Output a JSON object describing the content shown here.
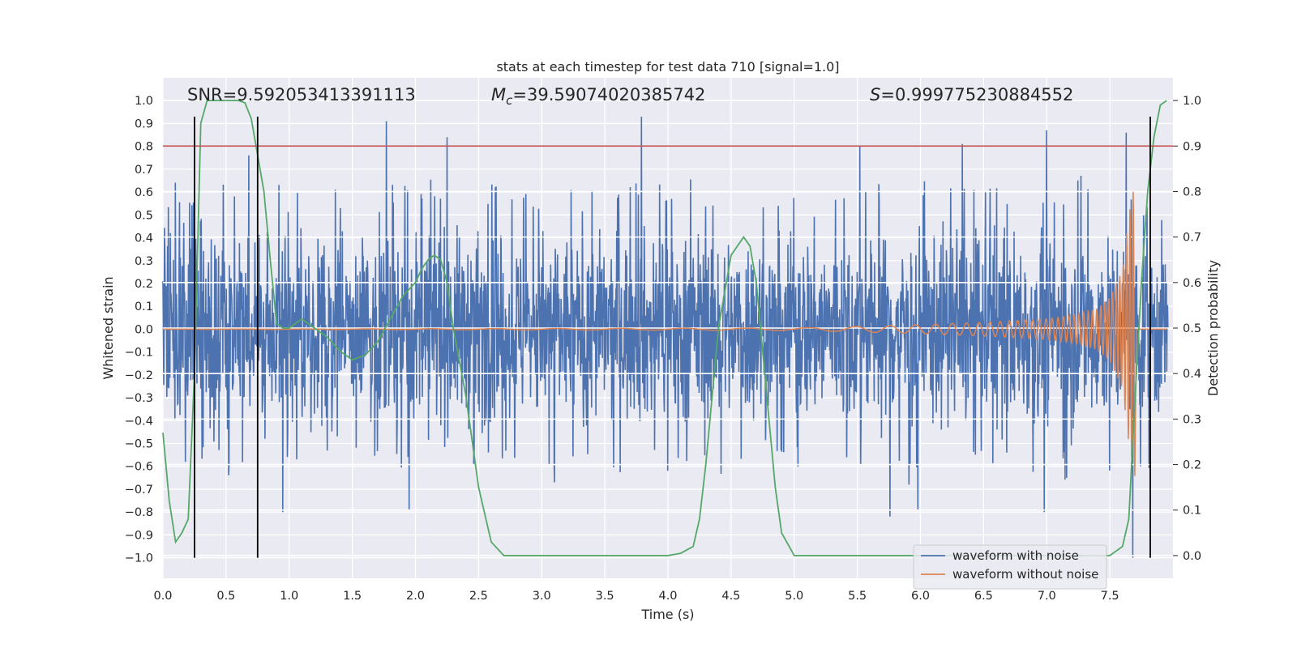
{
  "chart_data": {
    "type": "line",
    "title": "stats at each timestep for test data 710 [signal=1.0]",
    "xlabel": "Time (s)",
    "ylabel": "Whitened strain",
    "ylabel_right": "Detection probability",
    "xlim": [
      0.0,
      8.0
    ],
    "ylim": [
      -1.09,
      1.1
    ],
    "ylim_right": [
      -0.05,
      1.05
    ],
    "x_ticks": [
      "0.0",
      "0.5",
      "1.0",
      "1.5",
      "2.0",
      "2.5",
      "3.0",
      "3.5",
      "4.0",
      "4.5",
      "5.0",
      "5.5",
      "6.0",
      "6.5",
      "7.0",
      "7.5"
    ],
    "y_ticks": [
      "1.0",
      "0.9",
      "0.8",
      "0.7",
      "0.6",
      "0.5",
      "0.4",
      "0.3",
      "0.2",
      "0.1",
      "0.0",
      "−0.1",
      "−0.2",
      "−0.3",
      "−0.4",
      "−0.5",
      "−0.6",
      "−0.7",
      "−0.8",
      "−0.9",
      "−1.0"
    ],
    "y_right_ticks": [
      "1.0",
      "0.9",
      "0.8",
      "0.7",
      "0.6",
      "0.5",
      "0.4",
      "0.3",
      "0.2",
      "0.1",
      "0.0"
    ],
    "annotations": {
      "snr": "SNR=9.592053413391113",
      "mc_symbol": "M",
      "mc_sub": "c",
      "mc_value": "=39.59074020385742",
      "s_symbol": "S",
      "s_value": "=0.999775230884552"
    },
    "threshold_right": 0.9,
    "event_lines_x": [
      0.25,
      0.75,
      7.82
    ],
    "event_lines_yrange": [
      -1.0,
      0.93
    ],
    "noise_envelope": {
      "x": [
        0.0,
        0.5,
        1.0,
        1.5,
        2.0,
        2.5,
        3.0,
        3.5,
        4.0,
        4.5,
        5.0,
        5.5,
        6.0,
        6.5,
        7.0,
        7.5,
        8.0
      ],
      "upper": [
        0.62,
        0.66,
        0.6,
        0.62,
        0.65,
        0.6,
        0.62,
        0.62,
        0.64,
        0.6,
        0.64,
        0.62,
        0.62,
        0.64,
        0.62,
        0.66,
        0.6
      ],
      "lower": [
        -0.6,
        -0.62,
        -0.64,
        -0.6,
        -0.62,
        -0.62,
        -0.6,
        -0.62,
        -0.6,
        -0.64,
        -0.6,
        -0.62,
        -0.68,
        -0.62,
        -0.64,
        -0.62,
        -0.6
      ],
      "peaks": [
        {
          "x": 0.68,
          "y": 0.76
        },
        {
          "x": 1.77,
          "y": 0.91
        },
        {
          "x": 2.25,
          "y": 0.84
        },
        {
          "x": 3.79,
          "y": 0.93
        },
        {
          "x": 5.52,
          "y": 0.8
        },
        {
          "x": 6.33,
          "y": 0.81
        },
        {
          "x": 7.0,
          "y": 0.87
        },
        {
          "x": 7.63,
          "y": 0.86
        },
        {
          "x": 0.95,
          "y": -0.8
        },
        {
          "x": 1.95,
          "y": -0.79
        },
        {
          "x": 3.1,
          "y": -0.67
        },
        {
          "x": 5.76,
          "y": -0.82
        },
        {
          "x": 5.98,
          "y": -0.79
        },
        {
          "x": 6.98,
          "y": -0.8
        },
        {
          "x": 7.68,
          "y": -1.0
        }
      ]
    },
    "signal_envelope": {
      "x": [
        0.0,
        5.0,
        5.5,
        6.0,
        6.5,
        7.0,
        7.2,
        7.4,
        7.5,
        7.6,
        7.65,
        7.7
      ],
      "amp": [
        0.0,
        0.005,
        0.012,
        0.02,
        0.03,
        0.045,
        0.06,
        0.09,
        0.14,
        0.26,
        0.5,
        0.65
      ],
      "chirp_start_freq": 2.0,
      "chirp_end_freq": 40.0
    },
    "series": [
      {
        "name": "waveform with noise",
        "color": "#4c72b0"
      },
      {
        "name": "waveform without noise",
        "color": "#dd8452"
      },
      {
        "name": "detection probability",
        "color": "#55a868",
        "axis": "right",
        "x": [
          0.0,
          0.05,
          0.1,
          0.15,
          0.2,
          0.25,
          0.3,
          0.35,
          0.4,
          0.5,
          0.6,
          0.65,
          0.7,
          0.75,
          0.8,
          0.85,
          0.9,
          0.95,
          1.0,
          1.05,
          1.1,
          1.15,
          1.2,
          1.3,
          1.4,
          1.5,
          1.6,
          1.7,
          1.8,
          1.9,
          2.0,
          2.05,
          2.1,
          2.15,
          2.2,
          2.25,
          2.3,
          2.4,
          2.5,
          2.6,
          2.7,
          2.8,
          3.0,
          3.5,
          4.0,
          4.1,
          4.2,
          4.25,
          4.3,
          4.4,
          4.5,
          4.6,
          4.65,
          4.7,
          4.75,
          4.8,
          4.85,
          4.9,
          5.0,
          5.5,
          6.0,
          6.5,
          7.0,
          7.5,
          7.6,
          7.65,
          7.7,
          7.75,
          7.8,
          7.85,
          7.9,
          7.95
        ],
        "y": [
          0.27,
          0.12,
          0.03,
          0.05,
          0.08,
          0.4,
          0.95,
          1.0,
          1.0,
          1.0,
          1.0,
          0.995,
          0.96,
          0.88,
          0.8,
          0.65,
          0.51,
          0.5,
          0.5,
          0.51,
          0.52,
          0.51,
          0.5,
          0.48,
          0.45,
          0.43,
          0.44,
          0.47,
          0.52,
          0.57,
          0.6,
          0.63,
          0.65,
          0.66,
          0.65,
          0.6,
          0.5,
          0.35,
          0.15,
          0.03,
          0.0,
          0.0,
          0.0,
          0.0,
          0.0,
          0.005,
          0.02,
          0.08,
          0.2,
          0.5,
          0.66,
          0.7,
          0.68,
          0.6,
          0.45,
          0.3,
          0.15,
          0.05,
          0.0,
          0.0,
          0.0,
          0.0,
          0.0,
          0.0,
          0.02,
          0.08,
          0.35,
          0.6,
          0.8,
          0.92,
          0.99,
          1.0
        ]
      }
    ],
    "legend": {
      "location": "lower-right",
      "entries": [
        "waveform with noise",
        "waveform without noise"
      ]
    },
    "threshold_color": "#c44e52",
    "event_line_color": "#000000"
  }
}
